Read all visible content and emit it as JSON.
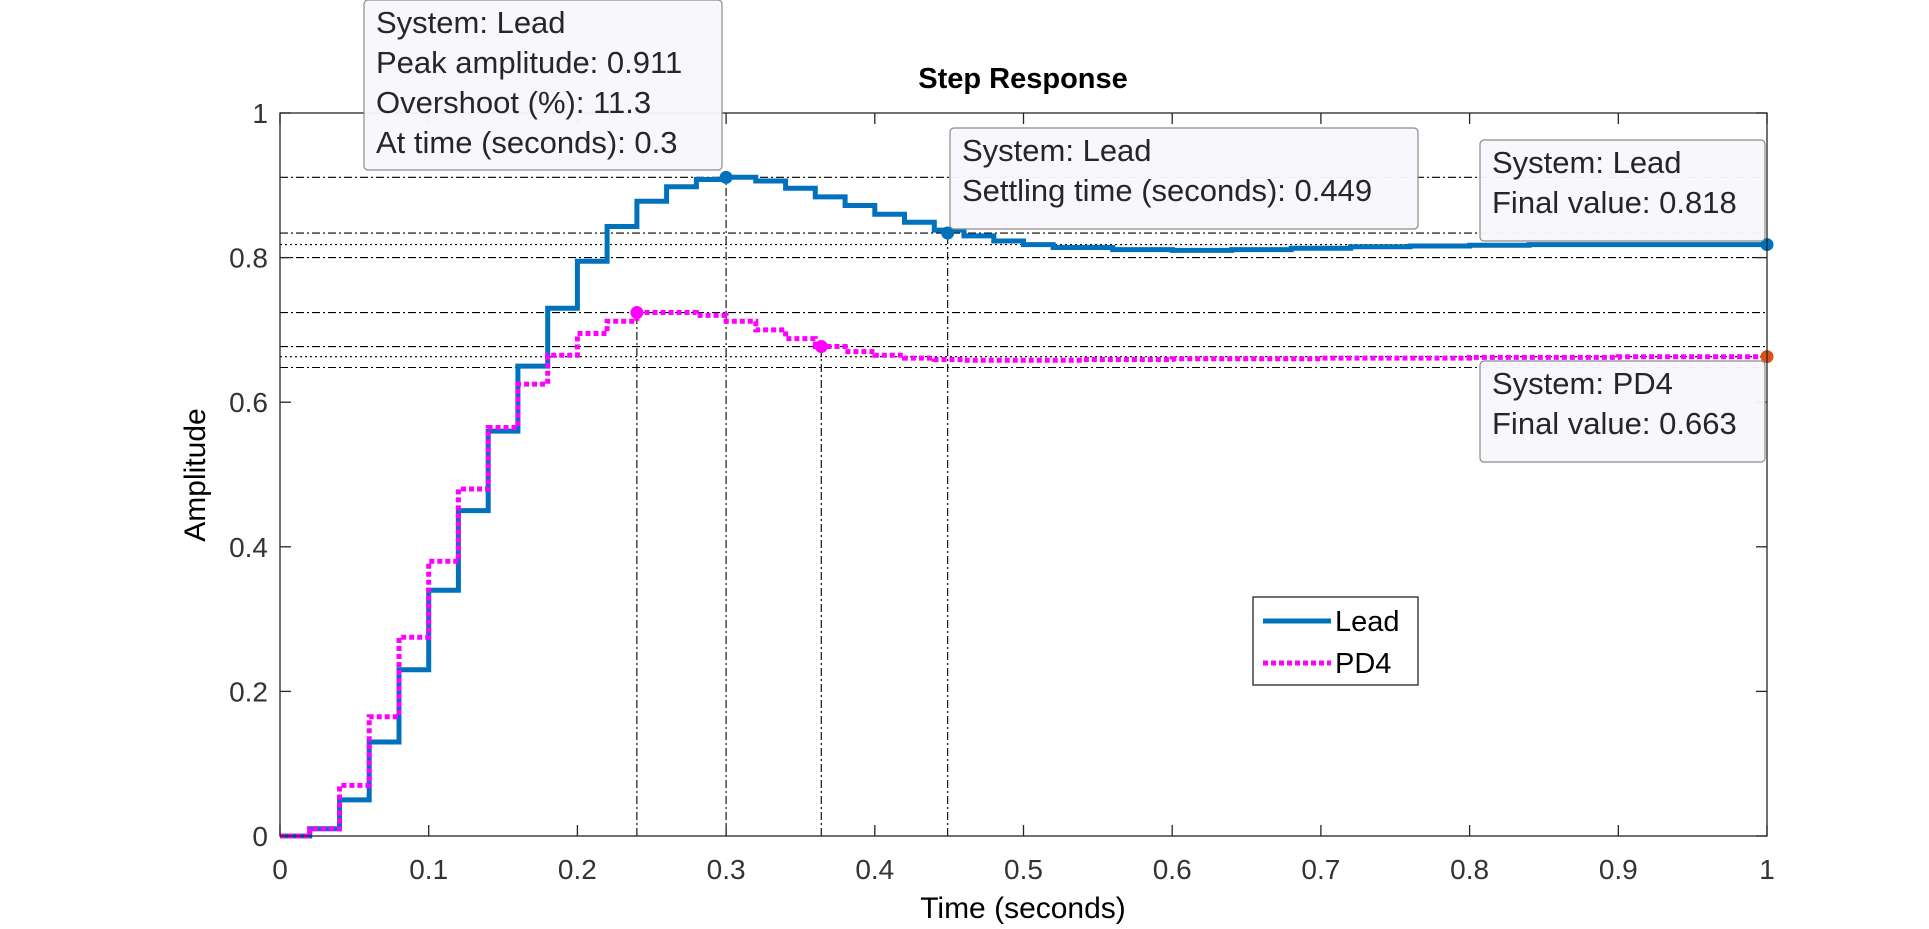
{
  "chart_data": {
    "type": "line",
    "title": "Step Response",
    "xlabel": "Time (seconds)",
    "ylabel": "Amplitude",
    "xlim": [
      0,
      1
    ],
    "ylim": [
      0,
      1
    ],
    "xticks": [
      "0",
      "0.1",
      "0.2",
      "0.3",
      "0.4",
      "0.5",
      "0.6",
      "0.7",
      "0.8",
      "0.9",
      "1"
    ],
    "yticks": [
      "0",
      "0.2",
      "0.4",
      "0.6",
      "0.8",
      "1"
    ],
    "grid": false,
    "legend_position": "lower-right",
    "sample_time": 0.02,
    "series": [
      {
        "name": "Lead",
        "color": "#0072BD",
        "line_style": "solid",
        "step": true,
        "x": [
          0,
          0.02,
          0.04,
          0.06,
          0.08,
          0.1,
          0.12,
          0.14,
          0.16,
          0.18,
          0.2,
          0.22,
          0.24,
          0.26,
          0.28,
          0.3,
          0.32,
          0.34,
          0.36,
          0.38,
          0.4,
          0.42,
          0.44,
          0.46,
          0.48,
          0.5,
          0.52,
          0.56,
          0.6,
          0.64,
          0.68,
          0.72,
          0.76,
          0.8,
          0.84,
          0.88,
          0.92,
          0.96,
          1.0
        ],
        "y": [
          0,
          0.01,
          0.05,
          0.13,
          0.23,
          0.34,
          0.45,
          0.56,
          0.65,
          0.73,
          0.795,
          0.843,
          0.878,
          0.898,
          0.908,
          0.911,
          0.906,
          0.896,
          0.884,
          0.872,
          0.86,
          0.849,
          0.838,
          0.83,
          0.823,
          0.818,
          0.814,
          0.811,
          0.81,
          0.811,
          0.813,
          0.815,
          0.816,
          0.817,
          0.818,
          0.818,
          0.818,
          0.818,
          0.818
        ]
      },
      {
        "name": "PD4",
        "color": "#FF00FF",
        "line_style": "dotted",
        "step": true,
        "x": [
          0,
          0.02,
          0.04,
          0.06,
          0.08,
          0.1,
          0.12,
          0.14,
          0.16,
          0.18,
          0.2,
          0.22,
          0.24,
          0.26,
          0.28,
          0.3,
          0.32,
          0.34,
          0.36,
          0.38,
          0.4,
          0.42,
          0.44,
          0.46,
          0.48,
          0.5,
          0.54,
          0.6,
          0.7,
          0.8,
          0.9,
          1.0
        ],
        "y": [
          0,
          0.01,
          0.07,
          0.165,
          0.275,
          0.38,
          0.48,
          0.565,
          0.625,
          0.665,
          0.695,
          0.712,
          0.724,
          0.724,
          0.72,
          0.712,
          0.7,
          0.688,
          0.677,
          0.67,
          0.665,
          0.661,
          0.659,
          0.658,
          0.658,
          0.658,
          0.659,
          0.66,
          0.661,
          0.662,
          0.663,
          0.663
        ]
      }
    ],
    "annotations": [
      {
        "x": 0.3,
        "y": 0.911,
        "color": "#0072BD",
        "lines": [
          "System: Lead",
          "Peak amplitude: 0.911",
          "Overshoot (%): 11.3",
          "At time (seconds): 0.3"
        ]
      },
      {
        "x": 0.449,
        "y": 0.834,
        "color": "#0072BD",
        "lines": [
          "System: Lead",
          "Settling time (seconds): 0.449"
        ]
      },
      {
        "x": 1.0,
        "y": 0.818,
        "color": "#0072BD",
        "lines": [
          "System: Lead",
          "Final value: 0.818"
        ]
      },
      {
        "x": 1.0,
        "y": 0.663,
        "color": "#D95319",
        "lines": [
          "System: PD4",
          "Final value: 0.663"
        ]
      },
      {
        "x": 0.24,
        "y": 0.724,
        "color": "#FF00FF",
        "lines": []
      },
      {
        "x": 0.364,
        "y": 0.677,
        "color": "#FF00FF",
        "lines": []
      }
    ],
    "reference_lines": {
      "horizontal": [
        0.911,
        0.834,
        0.818,
        0.8,
        0.724,
        0.677,
        0.663,
        0.648
      ],
      "vertical": [
        0.24,
        0.3,
        0.364,
        0.449
      ]
    }
  }
}
